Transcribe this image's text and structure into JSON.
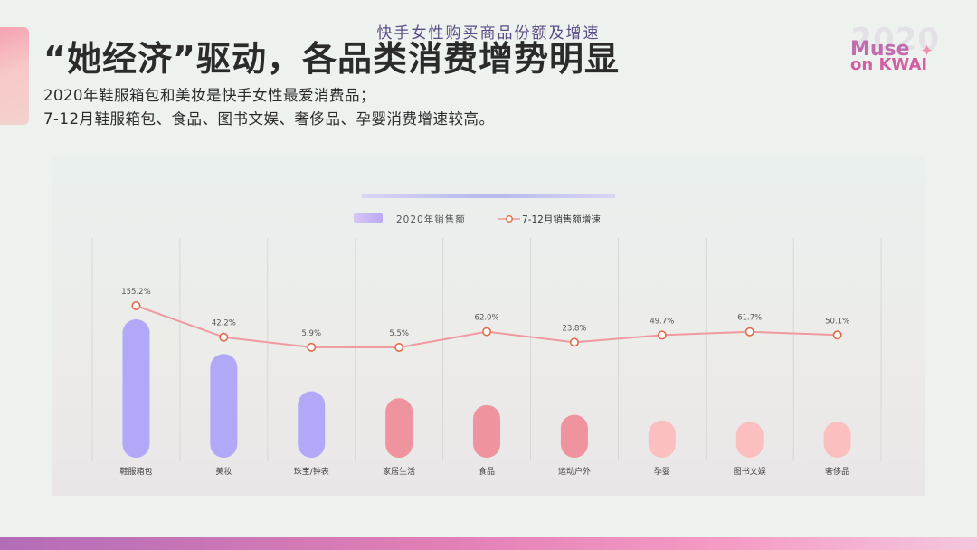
{
  "header": {
    "title": "“她经济”驱动，各品类消费增势明显",
    "subtitle_line1": "2020年鞋服箱包和美妆是快手女性最爱消费品；",
    "subtitle_line2": "7-12月鞋服箱包、食品、图书文娱、奢侈品、孕婴消费增速较高。"
  },
  "brand": {
    "year": "2020",
    "line1": "Muse",
    "line2": "on KWAI"
  },
  "colors": {
    "bar_purple": "#b1a9f8",
    "bar_red": "#ef939f",
    "bar_pink": "#fbbfc0",
    "line": "#ef9aa0",
    "marker": "#e4694a"
  },
  "chart_data": {
    "type": "bar",
    "title": "快手女性购买商品份额及增速",
    "legend": {
      "bar_label": "2020年销售额",
      "line_label": "7-12月销售额增速",
      "position": "top-center"
    },
    "categories": [
      "鞋服箱包",
      "美妆",
      "珠宝/钟表",
      "家居生活",
      "食品",
      "运动户外",
      "孕婴",
      "图书文娱",
      "奢侈品"
    ],
    "series": [
      {
        "name": "2020年销售额",
        "kind": "bar",
        "values": [
          100,
          75,
          48,
          43,
          38,
          31,
          27,
          26,
          26
        ],
        "colors": [
          "#b1a9f8",
          "#b1a9f8",
          "#b1a9f8",
          "#ef939f",
          "#ef939f",
          "#ef939f",
          "#fbbfc0",
          "#fbbfc0",
          "#fbbfc0"
        ]
      },
      {
        "name": "7-12月销售额增速",
        "kind": "line",
        "values": [
          155.2,
          42.2,
          5.9,
          5.5,
          62.0,
          23.8,
          49.7,
          61.7,
          50.1
        ],
        "labels": [
          "155.2%",
          "42.2%",
          "5.9%",
          "5.5%",
          "62.0%",
          "23.8%",
          "49.7%",
          "61.7%",
          "50.1%"
        ]
      }
    ],
    "grid": "vertical separators",
    "y_axis_visible": false
  }
}
